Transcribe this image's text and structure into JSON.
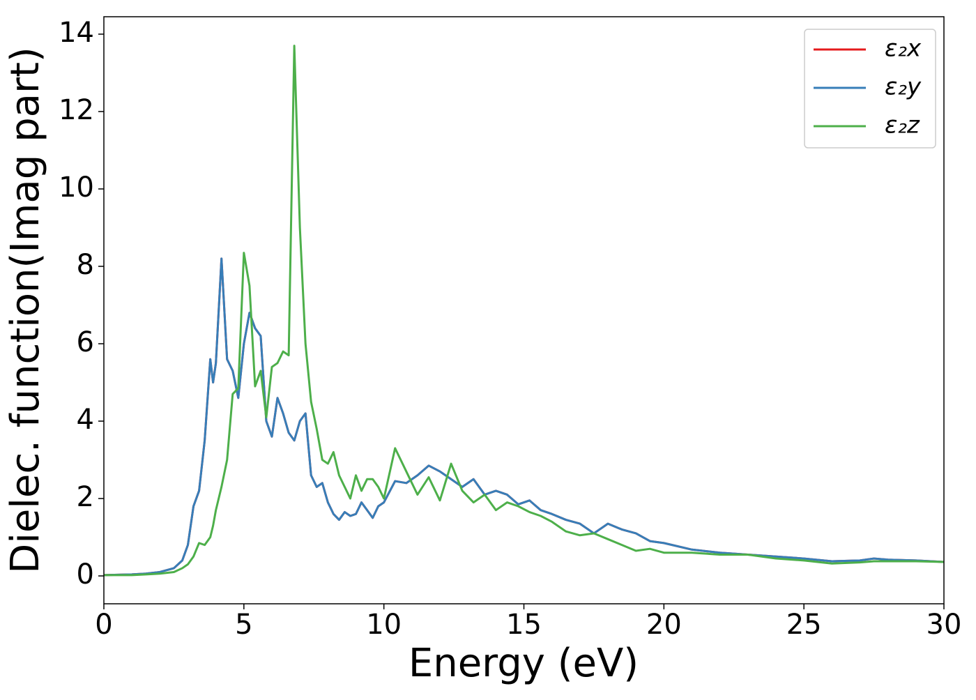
{
  "chart_data": {
    "type": "line",
    "xlabel": "Energy (eV)",
    "ylabel": "Dielec. function(Imag part)",
    "x": [
      0,
      0.5,
      1,
      1.5,
      2,
      2.5,
      2.8,
      3,
      3.2,
      3.4,
      3.6,
      3.8,
      3.9,
      4.0,
      4.2,
      4.4,
      4.6,
      4.8,
      5,
      5.2,
      5.4,
      5.6,
      5.8,
      6,
      6.2,
      6.4,
      6.6,
      6.8,
      7,
      7.2,
      7.4,
      7.6,
      7.8,
      8,
      8.2,
      8.4,
      8.6,
      8.8,
      9,
      9.2,
      9.4,
      9.6,
      9.8,
      10,
      10.4,
      10.8,
      11.2,
      11.6,
      12,
      12.4,
      12.8,
      13.2,
      13.6,
      14,
      14.4,
      14.8,
      15.2,
      15.6,
      16,
      16.5,
      17,
      17.5,
      18,
      18.5,
      19,
      19.5,
      20,
      21,
      22,
      23,
      24,
      25,
      26,
      27,
      27.5,
      28,
      29,
      30
    ],
    "series": [
      {
        "name": "ε₂x",
        "color": "#e41a1c",
        "values": [
          0.02,
          0.03,
          0.04,
          0.06,
          0.1,
          0.2,
          0.4,
          0.8,
          1.8,
          2.2,
          3.5,
          5.6,
          5.0,
          5.5,
          8.2,
          5.6,
          5.3,
          4.6,
          6.0,
          6.8,
          6.4,
          6.2,
          4.0,
          3.6,
          4.6,
          4.2,
          3.7,
          3.5,
          4.0,
          4.2,
          2.6,
          2.3,
          2.4,
          1.9,
          1.6,
          1.45,
          1.65,
          1.55,
          1.6,
          1.9,
          1.7,
          1.5,
          1.8,
          1.9,
          2.45,
          2.4,
          2.6,
          2.85,
          2.7,
          2.5,
          2.3,
          2.5,
          2.1,
          2.2,
          2.1,
          1.85,
          1.95,
          1.7,
          1.6,
          1.45,
          1.35,
          1.1,
          1.35,
          1.2,
          1.1,
          0.9,
          0.85,
          0.68,
          0.6,
          0.55,
          0.5,
          0.45,
          0.38,
          0.4,
          0.45,
          0.42,
          0.4,
          0.36
        ]
      },
      {
        "name": "ε₂y",
        "color": "#377eb8",
        "values": [
          0.02,
          0.03,
          0.04,
          0.06,
          0.1,
          0.2,
          0.4,
          0.8,
          1.8,
          2.2,
          3.5,
          5.6,
          5.0,
          5.5,
          8.2,
          5.6,
          5.3,
          4.6,
          6.0,
          6.8,
          6.4,
          6.2,
          4.0,
          3.6,
          4.6,
          4.2,
          3.7,
          3.5,
          4.0,
          4.2,
          2.6,
          2.3,
          2.4,
          1.9,
          1.6,
          1.45,
          1.65,
          1.55,
          1.6,
          1.9,
          1.7,
          1.5,
          1.8,
          1.9,
          2.45,
          2.4,
          2.6,
          2.85,
          2.7,
          2.5,
          2.3,
          2.5,
          2.1,
          2.2,
          2.1,
          1.85,
          1.95,
          1.7,
          1.6,
          1.45,
          1.35,
          1.1,
          1.35,
          1.2,
          1.1,
          0.9,
          0.85,
          0.68,
          0.6,
          0.55,
          0.5,
          0.45,
          0.38,
          0.4,
          0.45,
          0.42,
          0.4,
          0.36
        ]
      },
      {
        "name": "ε₂z",
        "color": "#4daf4a",
        "values": [
          0.02,
          0.02,
          0.02,
          0.04,
          0.06,
          0.1,
          0.2,
          0.3,
          0.5,
          0.85,
          0.8,
          1.0,
          1.3,
          1.7,
          2.3,
          3.0,
          4.7,
          4.85,
          8.35,
          7.5,
          4.9,
          5.3,
          4.1,
          5.4,
          5.5,
          5.8,
          5.7,
          13.7,
          9.0,
          6.0,
          4.5,
          3.8,
          3.0,
          2.9,
          3.2,
          2.6,
          2.3,
          2.0,
          2.6,
          2.2,
          2.5,
          2.5,
          2.3,
          2.0,
          3.3,
          2.7,
          2.1,
          2.55,
          1.95,
          2.9,
          2.2,
          1.9,
          2.1,
          1.7,
          1.9,
          1.8,
          1.65,
          1.55,
          1.4,
          1.15,
          1.05,
          1.1,
          0.95,
          0.8,
          0.65,
          0.7,
          0.6,
          0.6,
          0.55,
          0.55,
          0.45,
          0.4,
          0.32,
          0.35,
          0.38,
          0.38,
          0.38,
          0.36
        ]
      }
    ],
    "xlim": [
      0,
      30
    ],
    "xticks": [
      0,
      5,
      10,
      15,
      20,
      25,
      30
    ],
    "ylim": [
      -0.72,
      14.45
    ],
    "yticks": [
      0,
      2,
      4,
      6,
      8,
      10,
      12,
      14
    ],
    "legend": "upper right"
  }
}
